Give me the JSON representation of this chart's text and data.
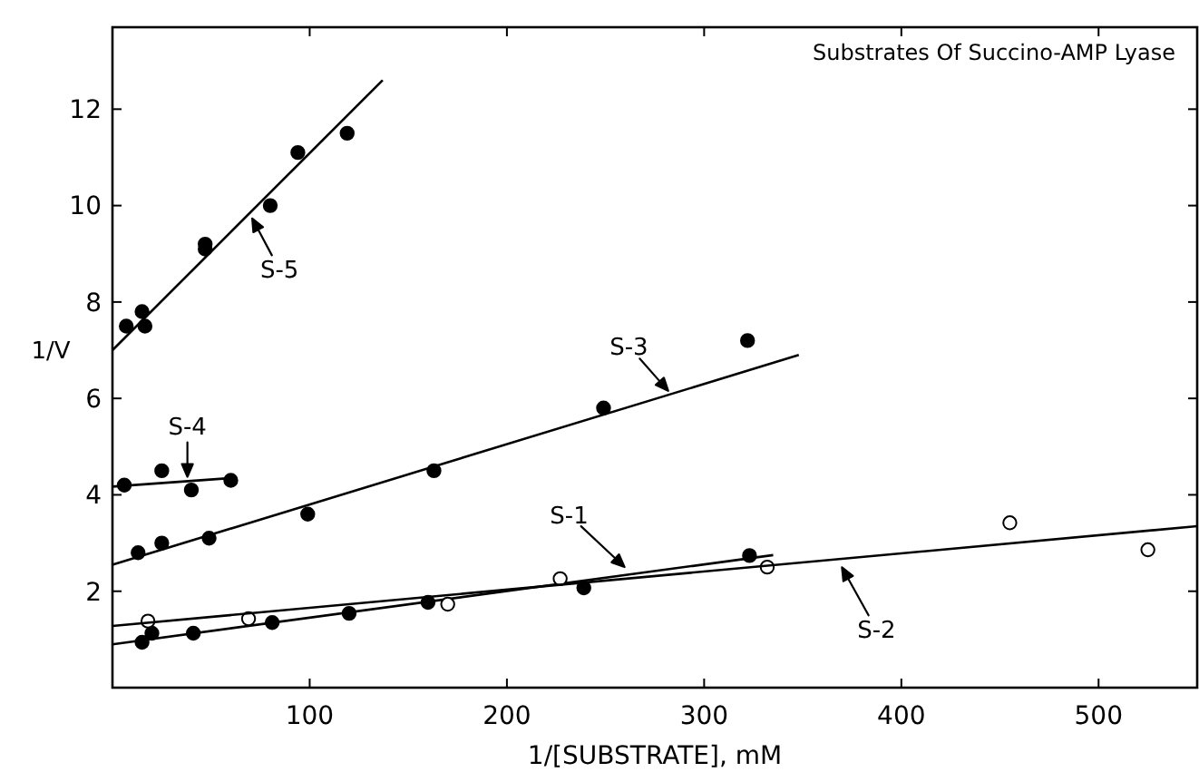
{
  "chart_data": {
    "type": "scatter",
    "title": "Substrates Of Succino-AMP Lyase",
    "xlabel": "1/[SUBSTRATE], mM",
    "ylabel": "1/V",
    "xlim": [
      0,
      550
    ],
    "xticks": [
      100,
      200,
      300,
      400,
      500
    ],
    "ylim": [
      0,
      13.7
    ],
    "yticks": [
      2,
      4,
      6,
      8,
      10,
      12
    ],
    "grid": false,
    "marker": "circle",
    "series": [
      {
        "color": "#000000",
        "x": [
          7,
          15,
          16.5,
          47,
          47,
          80,
          94,
          119
        ],
        "values": [
          7.5,
          7.8,
          7.5,
          9.2,
          9.1,
          10.0,
          11.1,
          11.5
        ]
      },
      {
        "type": "line",
        "color": "#000000",
        "marker": "none",
        "x": [
          0,
          137
        ],
        "values": [
          7.0,
          12.6
        ]
      },
      {
        "color": "#000000",
        "x": [
          6,
          25,
          40,
          60
        ],
        "values": [
          4.2,
          4.5,
          4.1,
          4.3
        ]
      },
      {
        "type": "line",
        "color": "#000000",
        "marker": "none",
        "x": [
          0,
          61
        ],
        "values": [
          4.17,
          4.35
        ]
      },
      {
        "color": "#000000",
        "x": [
          13,
          25,
          49,
          99,
          163,
          249,
          322
        ],
        "values": [
          2.8,
          3.0,
          3.1,
          3.6,
          4.5,
          5.8,
          7.2
        ]
      },
      {
        "type": "line",
        "color": "#000000",
        "marker": "none",
        "x": [
          0,
          348
        ],
        "values": [
          2.55,
          6.9
        ]
      },
      {
        "color": "#000000",
        "x": [
          15,
          20,
          41,
          81,
          120,
          160,
          239,
          323
        ],
        "values": [
          0.94,
          1.13,
          1.13,
          1.35,
          1.54,
          1.77,
          2.07,
          2.74
        ]
      },
      {
        "type": "line",
        "color": "#000000",
        "marker": "none",
        "x": [
          0,
          335
        ],
        "values": [
          0.9,
          2.75
        ]
      },
      {
        "color": "#ffffff",
        "x": [
          18,
          69,
          170,
          227,
          332,
          455,
          525
        ],
        "values": [
          1.38,
          1.43,
          1.73,
          2.26,
          2.5,
          3.42,
          2.86
        ]
      },
      {
        "type": "line",
        "color": "#000000",
        "marker": "none",
        "x": [
          0,
          550
        ],
        "values": [
          1.28,
          3.35
        ]
      }
    ],
    "annotations": [
      {
        "text": "S-5",
        "x": 70,
        "y": 9.8
      },
      {
        "text": "S-4",
        "x": 38,
        "y": 4.3
      },
      {
        "text": "S-3",
        "x": 283,
        "y": 6.1
      },
      {
        "text": "S-1",
        "x": 261,
        "y": 2.45
      },
      {
        "text": "S-2",
        "x": 369,
        "y": 2.56
      }
    ]
  }
}
